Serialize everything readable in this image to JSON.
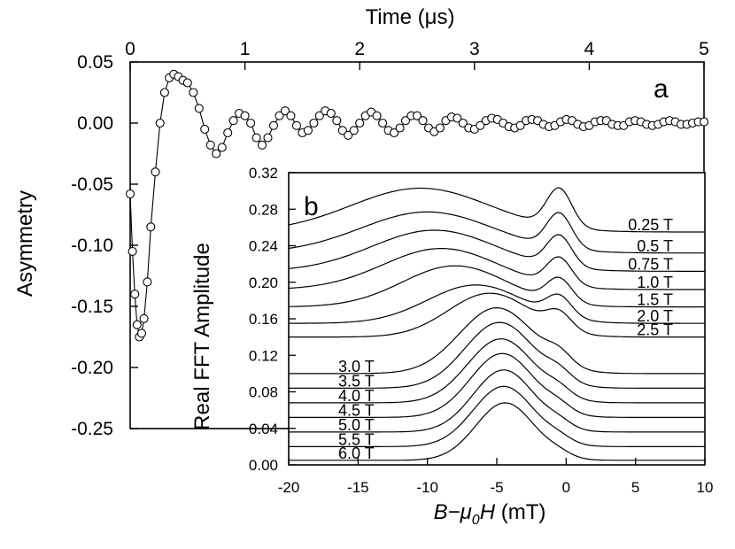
{
  "chart_data": [
    {
      "id": "a",
      "type": "scatter",
      "panel_label": "a",
      "xlabel": "Time (μs)",
      "ylabel": "Asymmetry",
      "xlim": [
        0,
        5
      ],
      "ylim": [
        -0.25,
        0.05
      ],
      "x_ticks": [
        0,
        1,
        2,
        3,
        4,
        5
      ],
      "y_ticks": [
        0.05,
        0.0,
        -0.05,
        -0.1,
        -0.15,
        -0.2,
        -0.25
      ],
      "y_tick_labels": [
        "0.05",
        "0.00",
        "-0.05",
        "-0.10",
        "-0.15",
        "-0.20",
        "-0.25"
      ],
      "x_axis_position": "top",
      "series": [
        {
          "name": "asymmetry",
          "markers": "open-circle",
          "connected": true,
          "x": [
            0.0,
            0.02,
            0.04,
            0.06,
            0.08,
            0.1,
            0.12,
            0.15,
            0.18,
            0.22,
            0.26,
            0.3,
            0.34,
            0.38,
            0.42,
            0.46,
            0.5,
            0.55,
            0.6,
            0.65,
            0.7,
            0.75,
            0.8,
            0.85,
            0.9,
            0.95,
            1.0,
            1.05,
            1.1,
            1.15,
            1.2,
            1.25,
            1.3,
            1.35,
            1.4,
            1.45,
            1.5,
            1.55,
            1.6,
            1.65,
            1.7,
            1.75,
            1.8,
            1.85,
            1.9,
            1.95,
            2.0,
            2.05,
            2.1,
            2.15,
            2.2,
            2.25,
            2.3,
            2.35,
            2.4,
            2.45,
            2.5,
            2.55,
            2.6,
            2.65,
            2.7,
            2.75,
            2.8,
            2.85,
            2.9,
            2.95,
            3.0,
            3.05,
            3.1,
            3.15,
            3.2,
            3.25,
            3.3,
            3.35,
            3.4,
            3.45,
            3.5,
            3.55,
            3.6,
            3.65,
            3.7,
            3.75,
            3.8,
            3.85,
            3.9,
            3.95,
            4.0,
            4.05,
            4.1,
            4.15,
            4.2,
            4.25,
            4.3,
            4.35,
            4.4,
            4.45,
            4.5,
            4.55,
            4.6,
            4.65,
            4.7,
            4.75,
            4.8,
            4.85,
            4.9,
            4.95,
            5.0
          ],
          "y": [
            -0.058,
            -0.105,
            -0.14,
            -0.165,
            -0.175,
            -0.172,
            -0.16,
            -0.13,
            -0.085,
            -0.04,
            0.0,
            0.025,
            0.037,
            0.04,
            0.038,
            0.035,
            0.033,
            0.025,
            0.012,
            -0.005,
            -0.018,
            -0.025,
            -0.02,
            -0.008,
            0.002,
            0.008,
            0.006,
            0.0,
            -0.012,
            -0.018,
            -0.012,
            -0.002,
            0.006,
            0.01,
            0.006,
            -0.002,
            -0.008,
            -0.006,
            0.0,
            0.006,
            0.01,
            0.008,
            0.002,
            -0.006,
            -0.01,
            -0.006,
            0.0,
            0.006,
            0.009,
            0.006,
            0.0,
            -0.006,
            -0.008,
            -0.004,
            0.002,
            0.006,
            0.006,
            0.002,
            -0.004,
            -0.007,
            -0.004,
            0.002,
            0.005,
            0.004,
            0.0,
            -0.004,
            -0.005,
            -0.002,
            0.002,
            0.004,
            0.003,
            0.0,
            -0.003,
            -0.004,
            -0.002,
            0.002,
            0.003,
            0.002,
            -0.001,
            -0.003,
            -0.002,
            0.001,
            0.003,
            0.002,
            -0.001,
            -0.003,
            -0.002,
            0.001,
            0.002,
            0.002,
            -0.001,
            -0.002,
            -0.002,
            0.001,
            0.002,
            0.001,
            -0.001,
            -0.002,
            -0.001,
            0.001,
            0.002,
            0.001,
            -0.001,
            -0.001,
            0.0,
            0.001,
            0.001
          ]
        }
      ]
    },
    {
      "id": "b",
      "type": "line",
      "panel_label": "b",
      "xlabel": "B−μ0H (mT)",
      "xlabel_parts": {
        "main": "B−μ",
        "sub": "0",
        "tail": "H",
        "units": " (mT)"
      },
      "ylabel": "Real FFT Amplitude",
      "xlim": [
        -20,
        10
      ],
      "ylim": [
        0,
        0.32
      ],
      "x_ticks": [
        -20,
        -15,
        -10,
        -5,
        0,
        5,
        10
      ],
      "y_ticks": [
        0.0,
        0.04,
        0.08,
        0.12,
        0.16,
        0.2,
        0.24,
        0.28,
        0.32
      ],
      "y_tick_labels": [
        "0.00",
        "0.04",
        "0.08",
        "0.12",
        "0.16",
        "0.20",
        "0.24",
        "0.28",
        "0.32"
      ],
      "stacked_offset_curves": true,
      "series": [
        {
          "name": "0.25 T",
          "offset": 0.255,
          "label_side": "right",
          "broad": {
            "center": -10.5,
            "width": 5.0,
            "amp": 0.048
          },
          "sharp": {
            "center": -0.5,
            "width": 0.9,
            "amp": 0.042
          }
        },
        {
          "name": "0.5 T",
          "offset": 0.232,
          "label_side": "right",
          "broad": {
            "center": -10.0,
            "width": 4.8,
            "amp": 0.045
          },
          "sharp": {
            "center": -0.5,
            "width": 0.9,
            "amp": 0.038
          }
        },
        {
          "name": "0.75 T",
          "offset": 0.212,
          "label_side": "right",
          "broad": {
            "center": -9.5,
            "width": 4.5,
            "amp": 0.045
          },
          "sharp": {
            "center": -0.5,
            "width": 0.9,
            "amp": 0.034
          }
        },
        {
          "name": "1.0 T",
          "offset": 0.192,
          "label_side": "right",
          "broad": {
            "center": -9.0,
            "width": 4.2,
            "amp": 0.045
          },
          "sharp": {
            "center": -0.5,
            "width": 0.9,
            "amp": 0.03
          }
        },
        {
          "name": "1.5 T",
          "offset": 0.173,
          "label_side": "right",
          "broad": {
            "center": -8.0,
            "width": 3.8,
            "amp": 0.045
          },
          "sharp": {
            "center": -0.5,
            "width": 0.9,
            "amp": 0.026
          }
        },
        {
          "name": "2.0 T",
          "offset": 0.155,
          "label_side": "right",
          "broad": {
            "center": -6.5,
            "width": 3.5,
            "amp": 0.042
          },
          "sharp": {
            "center": -0.5,
            "width": 0.9,
            "amp": 0.022
          }
        },
        {
          "name": "2.5 T",
          "offset": 0.14,
          "label_side": "right",
          "broad": {
            "center": -5.5,
            "width": 3.0,
            "amp": 0.048
          },
          "sharp": {
            "center": -0.5,
            "width": 0.9,
            "amp": 0.018
          }
        },
        {
          "name": "3.0 T",
          "offset": 0.1,
          "label_side": "left",
          "broad": {
            "center": -5.0,
            "width": 2.7,
            "amp": 0.072
          },
          "sharp": {
            "center": -0.5,
            "width": 0.9,
            "amp": 0.012
          }
        },
        {
          "name": "3.5 T",
          "offset": 0.084,
          "label_side": "left",
          "broad": {
            "center": -4.8,
            "width": 2.5,
            "amp": 0.072
          },
          "sharp": {
            "center": -0.5,
            "width": 0.9,
            "amp": 0.01
          }
        },
        {
          "name": "4.0 T",
          "offset": 0.068,
          "label_side": "left",
          "broad": {
            "center": -4.7,
            "width": 2.4,
            "amp": 0.07
          },
          "sharp": {
            "center": -0.5,
            "width": 0.9,
            "amp": 0.008
          }
        },
        {
          "name": "4.5 T",
          "offset": 0.052,
          "label_side": "left",
          "broad": {
            "center": -4.6,
            "width": 2.3,
            "amp": 0.07
          },
          "sharp": {
            "center": -0.5,
            "width": 0.9,
            "amp": 0.007
          }
        },
        {
          "name": "5.0 T",
          "offset": 0.036,
          "label_side": "left",
          "broad": {
            "center": -4.5,
            "width": 2.2,
            "amp": 0.068
          },
          "sharp": {
            "center": -0.5,
            "width": 0.9,
            "amp": 0.006
          }
        },
        {
          "name": "5.5 T",
          "offset": 0.02,
          "label_side": "left",
          "broad": {
            "center": -4.5,
            "width": 2.2,
            "amp": 0.066
          },
          "sharp": {
            "center": -0.5,
            "width": 0.9,
            "amp": 0.005
          }
        },
        {
          "name": "6.0 T",
          "offset": 0.005,
          "label_side": "left",
          "broad": {
            "center": -4.4,
            "width": 2.1,
            "amp": 0.063
          },
          "sharp": {
            "center": -0.5,
            "width": 0.9,
            "amp": 0.004
          }
        }
      ]
    }
  ]
}
